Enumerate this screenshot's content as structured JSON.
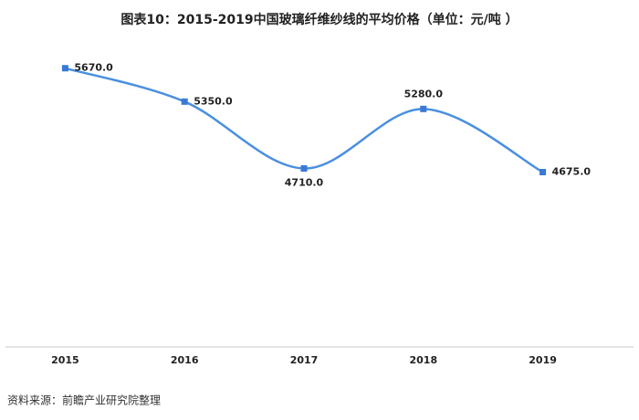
{
  "chart_data": {
    "type": "line",
    "title": "图表10：2015-2019中国玻璃纤维纱线的平均价格（单位：元/吨 ）",
    "categories": [
      "2015",
      "2016",
      "2017",
      "2018",
      "2019"
    ],
    "values": [
      5670,
      5350,
      4710,
      5280,
      4675
    ],
    "value_labels": [
      "5670.0",
      "5350.0",
      "4710.0",
      "5280.0",
      "4675.0"
    ],
    "color": "#4a8fe0",
    "marker_color": "#3a7ad4",
    "ylim": [
      3000,
      6000
    ],
    "smooth": true,
    "source": "资料来源：前瞻产业研究院整理"
  }
}
